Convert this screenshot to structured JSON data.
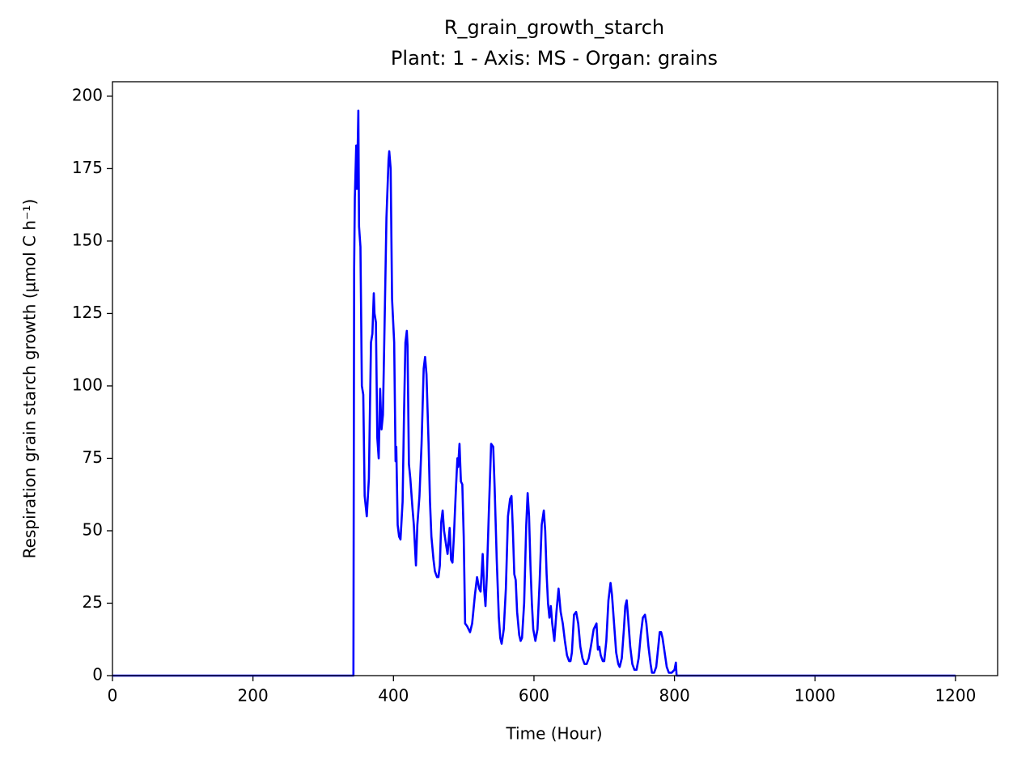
{
  "chart_data": {
    "type": "line",
    "title": "R_grain_growth_starch",
    "subtitle": "Plant: 1 - Axis: MS - Organ: grains",
    "xlabel": "Time (Hour)",
    "ylabel": "Respiration grain starch growth (µmol C h⁻¹)",
    "color": "#0000ff",
    "xlim": [
      0,
      1260
    ],
    "ylim": [
      0,
      205
    ],
    "xticks": [
      0,
      200,
      400,
      600,
      800,
      1000,
      1200
    ],
    "yticks": [
      0,
      25,
      50,
      75,
      100,
      125,
      150,
      175,
      200
    ],
    "grid": false,
    "x": [
      0,
      343,
      344,
      345,
      347,
      348,
      350,
      351,
      353,
      355,
      357,
      359,
      362,
      365,
      368,
      370,
      372,
      373,
      375,
      377,
      379,
      381,
      383,
      385,
      388,
      390,
      393,
      394,
      396,
      398,
      401,
      403,
      404,
      406,
      408,
      410,
      413,
      415,
      417,
      419,
      420,
      422,
      424,
      427,
      429,
      432,
      434,
      437,
      440,
      443,
      445,
      447,
      450,
      452,
      454,
      457,
      459,
      462,
      464,
      466,
      468,
      470,
      472,
      475,
      477,
      480,
      482,
      484,
      486,
      489,
      491,
      492,
      494,
      496,
      498,
      500,
      502,
      505,
      509,
      512,
      516,
      519,
      522,
      524,
      527,
      529,
      531,
      533,
      536,
      539,
      542,
      544,
      547,
      550,
      552,
      554,
      557,
      560,
      563,
      566,
      568,
      570,
      572,
      574,
      576,
      579,
      581,
      583,
      586,
      589,
      591,
      593,
      595,
      597,
      599,
      602,
      605,
      608,
      611,
      614,
      616,
      618,
      620,
      622,
      624,
      626,
      629,
      632,
      635,
      638,
      641,
      644,
      647,
      650,
      652,
      654,
      657,
      660,
      663,
      666,
      669,
      672,
      675,
      678,
      681,
      685,
      689,
      691,
      693,
      695,
      698,
      700,
      703,
      706,
      709,
      711,
      714,
      717,
      720,
      722,
      725,
      728,
      730,
      732,
      734,
      737,
      740,
      743,
      746,
      749,
      752,
      755,
      758,
      760,
      763,
      766,
      768,
      771,
      774,
      777,
      779,
      781,
      783,
      786,
      789,
      792,
      796,
      800,
      802,
      803,
      1200
    ],
    "values": [
      0,
      0,
      140,
      165,
      183,
      168,
      195,
      155,
      148,
      100,
      97,
      62,
      55,
      68,
      115,
      118,
      132,
      125,
      122,
      82,
      75,
      99,
      85,
      90,
      130,
      158,
      178,
      181,
      175,
      130,
      115,
      74,
      79,
      52,
      48,
      47,
      60,
      90,
      115,
      119,
      114,
      73,
      68,
      58,
      52,
      38,
      52,
      62,
      80,
      106,
      110,
      104,
      80,
      60,
      48,
      40,
      36,
      34,
      34,
      38,
      53,
      57,
      50,
      45,
      42,
      51,
      40,
      39,
      48,
      65,
      75,
      72,
      80,
      67,
      66,
      48,
      18,
      17,
      15,
      18,
      28,
      34,
      30,
      29,
      42,
      30,
      24,
      35,
      58,
      80,
      79,
      65,
      40,
      20,
      13,
      11,
      16,
      30,
      55,
      61,
      62,
      50,
      35,
      33,
      22,
      14,
      12,
      13,
      25,
      52,
      63,
      55,
      38,
      25,
      16,
      12,
      16,
      32,
      52,
      57,
      50,
      35,
      25,
      20,
      24,
      18,
      12,
      22,
      30,
      22,
      18,
      12,
      7,
      5,
      5,
      8,
      21,
      22,
      18,
      10,
      6,
      4,
      4,
      6,
      10,
      16,
      18,
      9,
      10,
      7,
      5,
      5,
      12,
      26,
      32,
      28,
      18,
      8,
      4,
      3,
      6,
      16,
      24,
      26,
      20,
      10,
      4,
      2,
      2,
      6,
      14,
      20,
      21,
      18,
      10,
      4,
      1,
      1,
      3,
      10,
      15,
      15,
      13,
      8,
      3,
      1,
      1,
      2,
      4.5,
      0,
      0
    ]
  }
}
